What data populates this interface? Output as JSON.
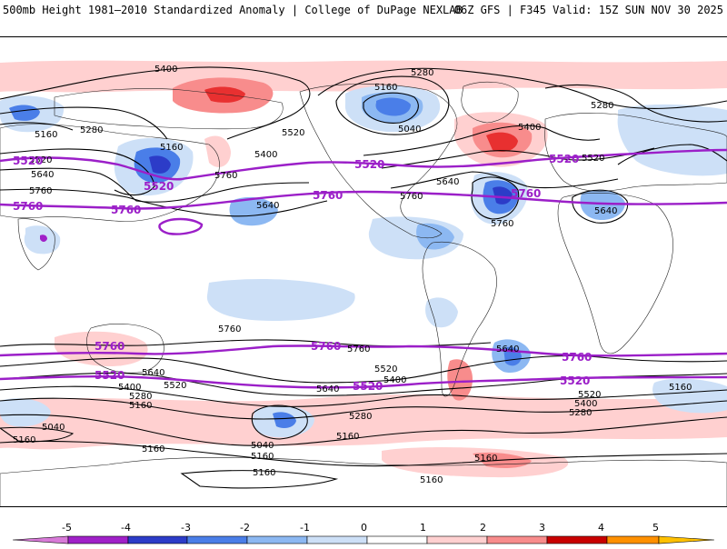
{
  "header": {
    "title_left": "500mb Height 1981–2010 Standardized Anomaly | College of DuPage NEXLAB",
    "title_right": "06Z GFS | F345 Valid: 15Z SUN NOV 30 2025"
  },
  "colors": {
    "contour": "#000000",
    "highlight_contour": "#9b1fc8",
    "pos1": "#ffd0d0",
    "pos2": "#f88c8c",
    "pos3": "#e83030",
    "pos4": "#c80000",
    "pos5": "#ff9000",
    "neg1": "#cde0f7",
    "neg2": "#8cb8f2",
    "neg3": "#4a7ee8",
    "neg4": "#2c3cc8",
    "neg5": "#a020c8"
  },
  "map": {
    "height_labels": [
      "5400",
      "5280",
      "5160",
      "5520",
      "5640",
      "5760",
      "5160",
      "5280",
      "5400",
      "5040",
      "5160",
      "5640",
      "5760",
      "5520",
      "5640",
      "5760",
      "5760",
      "5520",
      "5640",
      "5400",
      "5280",
      "5160",
      "5040",
      "5160",
      "5160",
      "5160",
      "5160",
      "5040",
      "5280",
      "5400",
      "5520",
      "5640",
      "5760",
      "5640",
      "5520",
      "5400",
      "5280",
      "5160",
      "5760",
      "5640",
      "5520",
      "5400",
      "5280",
      "5160",
      "5160",
      "5160"
    ],
    "highlight_labels": [
      "5520",
      "5760",
      "5520",
      "5760",
      "5520",
      "5760",
      "5760",
      "5520",
      "5760",
      "5520",
      "5760",
      "5520",
      "5760",
      "5520"
    ]
  },
  "colorbar": {
    "ticks": [
      "-5",
      "-4",
      "-3",
      "-2",
      "-1",
      "0",
      "1",
      "2",
      "3",
      "4",
      "5"
    ]
  }
}
